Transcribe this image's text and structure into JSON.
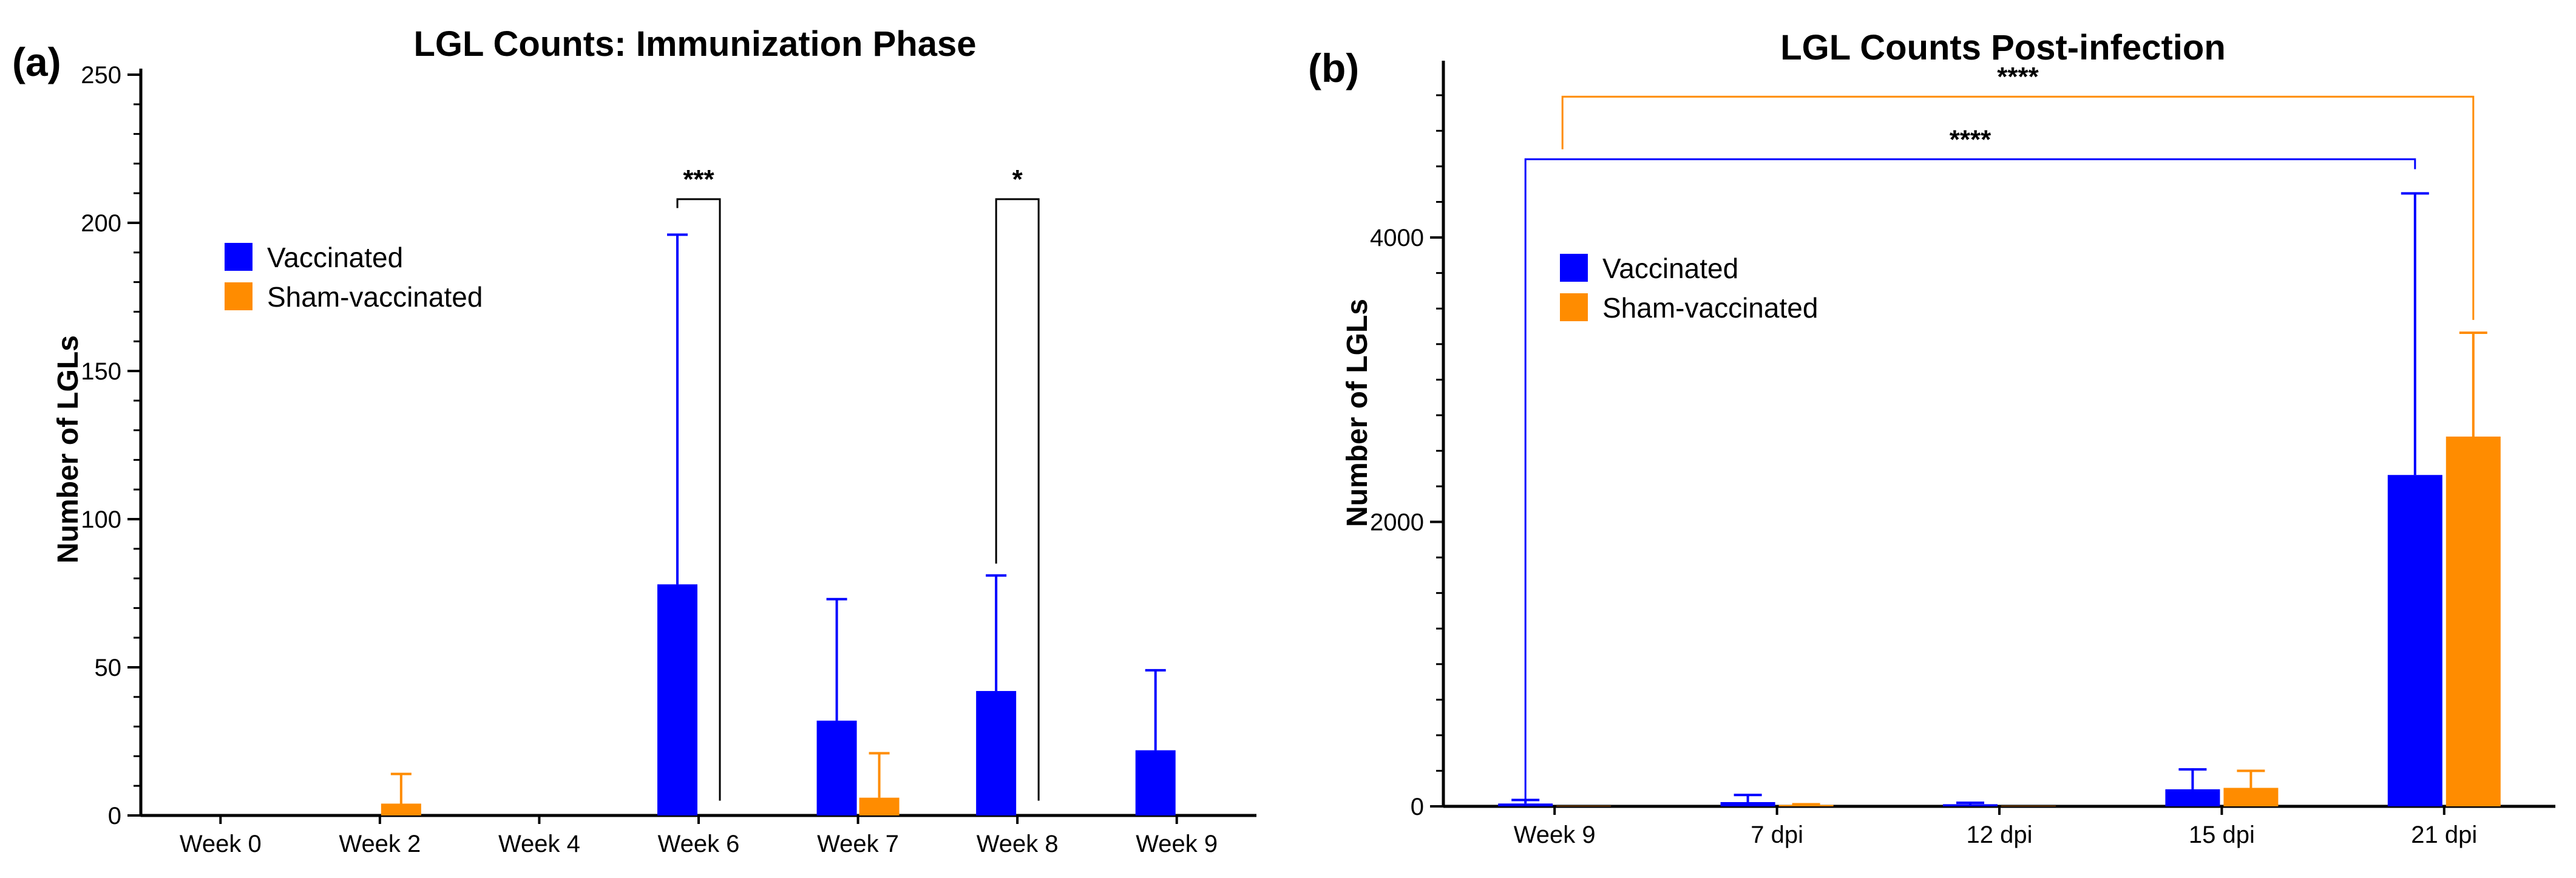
{
  "figure": {
    "colors": {
      "vaccinated": "#0000ff",
      "sham": "#ff8c00",
      "axis": "#000000"
    }
  },
  "chart_data": [
    {
      "panel_label": "(a)",
      "type": "bar",
      "title": "LGL Counts:  Immunization Phase",
      "xlabel": "",
      "ylabel": "Number of LGLs",
      "ylim": [
        0,
        250
      ],
      "yticks": [
        0,
        50,
        100,
        150,
        200,
        250
      ],
      "categories": [
        "Week 0",
        "Week 2",
        "Week 4",
        "Week 6",
        "Week 7",
        "Week 8",
        "Week 9"
      ],
      "legend_position": "upper-left",
      "series": [
        {
          "name": "Vaccinated",
          "color": "#0000ff",
          "values": [
            0,
            0,
            0,
            78,
            32,
            42,
            22
          ],
          "error_upper": [
            0,
            0,
            0,
            196,
            73,
            81,
            49
          ]
        },
        {
          "name": "Sham-vaccinated",
          "color": "#ff8c00",
          "values": [
            0,
            4,
            0,
            0,
            6,
            0,
            0
          ],
          "error_upper": [
            0,
            14,
            0,
            0,
            21,
            0,
            0
          ]
        }
      ],
      "significance": [
        {
          "label": "***",
          "category": "Week 6",
          "bracket_top": 208,
          "left_base": 205,
          "right_base": 5
        },
        {
          "label": "*",
          "category": "Week 8",
          "bracket_top": 208,
          "left_base": 85,
          "right_base": 5
        }
      ]
    },
    {
      "panel_label": "(b)",
      "type": "bar",
      "title": "LGL Counts Post-infection",
      "xlabel": "",
      "ylabel": "Number of LGLs",
      "ylim": [
        0,
        5200
      ],
      "yticks": [
        0,
        2000,
        4000
      ],
      "categories": [
        "Week 9",
        "7 dpi",
        "12 dpi",
        "15 dpi",
        "21 dpi"
      ],
      "legend_position": "upper-left",
      "series": [
        {
          "name": "Vaccinated",
          "color": "#0000ff",
          "values": [
            20,
            30,
            15,
            120,
            2330
          ],
          "error_upper": [
            45,
            80,
            25,
            260,
            4310
          ]
        },
        {
          "name": "Sham-vaccinated",
          "color": "#ff8c00",
          "values": [
            3,
            10,
            3,
            130,
            2600
          ],
          "error_upper": [
            3,
            15,
            3,
            250,
            3330
          ]
        }
      ],
      "significance": [
        {
          "label": "****",
          "series": "Vaccinated",
          "from": "Week 9",
          "to": "21 dpi",
          "bracket_top": 4550,
          "left_base": 50,
          "right_base": 4480
        },
        {
          "label": "****",
          "series": "Sham-vaccinated",
          "from": "Week 9",
          "to": "21 dpi",
          "bracket_top": 4990,
          "left_base": 4620,
          "right_base": 3420
        }
      ]
    }
  ]
}
